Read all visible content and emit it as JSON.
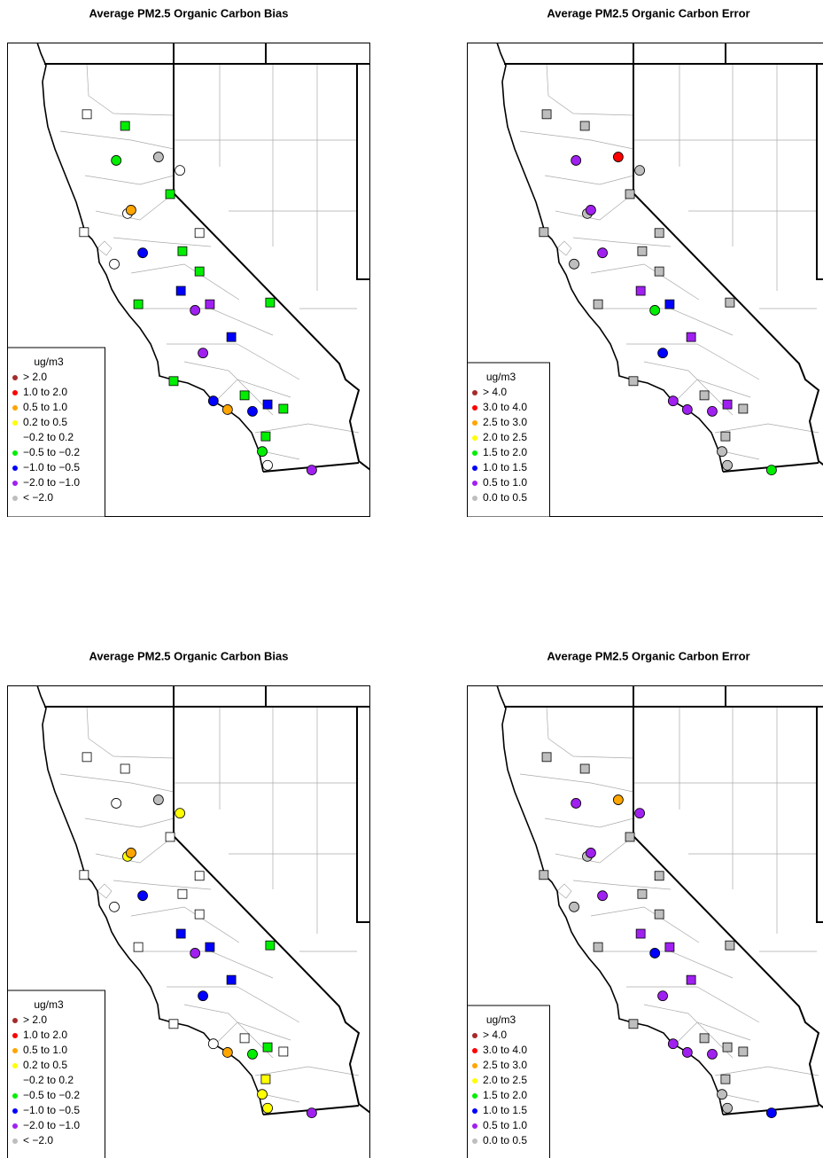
{
  "panels": [
    {
      "title": "Average PM2.5 Organic Carbon Bias",
      "legend": {
        "title": "ug/m3",
        "items": [
          {
            "label": "> 2.0",
            "color": "#a52a2a"
          },
          {
            "label": "1.0 to 2.0",
            "color": "#ff0000"
          },
          {
            "label": "0.5 to 1.0",
            "color": "#ffa500"
          },
          {
            "label": "0.2 to 0.5",
            "color": "#ffff00"
          },
          {
            "label": "−0.2 to 0.2",
            "color": "#ffffff"
          },
          {
            "label": "−0.5 to −0.2",
            "color": "#00ee00"
          },
          {
            "label": "−1.0 to −0.5",
            "color": "#0000ff"
          },
          {
            "label": "−2.0 to −1.0",
            "color": "#a020f0"
          },
          {
            "label": "< −2.0",
            "color": "#bebebe"
          }
        ]
      },
      "site_classes": [
        4,
        5,
        5,
        8,
        4,
        5,
        4,
        2,
        4,
        4,
        4,
        6,
        5,
        5,
        6,
        5,
        7,
        7,
        5,
        6,
        7,
        5,
        5,
        6,
        2,
        6,
        6,
        5,
        5,
        5,
        4,
        7
      ]
    },
    {
      "title": "Average PM2.5 Organic Carbon Error",
      "legend": {
        "title": "ug/m3",
        "items": [
          {
            "label": "> 4.0",
            "color": "#a52a2a"
          },
          {
            "label": "3.0 to 4.0",
            "color": "#ff0000"
          },
          {
            "label": "2.5 to 3.0",
            "color": "#ffa500"
          },
          {
            "label": "2.0 to 2.5",
            "color": "#ffff00"
          },
          {
            "label": "1.5 to 2.0",
            "color": "#00ee00"
          },
          {
            "label": "1.0 to 1.5",
            "color": "#0000ff"
          },
          {
            "label": "0.5 to 1.0",
            "color": "#a020f0"
          },
          {
            "label": "0.0 to 0.5",
            "color": "#bebebe"
          }
        ]
      },
      "site_classes": [
        7,
        7,
        6,
        1,
        7,
        7,
        7,
        6,
        7,
        7,
        7,
        6,
        7,
        7,
        6,
        7,
        5,
        4,
        7,
        6,
        5,
        7,
        7,
        6,
        6,
        6,
        6,
        7,
        7,
        7,
        7,
        4
      ]
    },
    {
      "title": "Average PM2.5 Organic Carbon Bias",
      "legend": {
        "title": "ug/m3",
        "items": [
          {
            "label": "> 2.0",
            "color": "#a52a2a"
          },
          {
            "label": "1.0 to 2.0",
            "color": "#ff0000"
          },
          {
            "label": "0.5 to 1.0",
            "color": "#ffa500"
          },
          {
            "label": "0.2 to 0.5",
            "color": "#ffff00"
          },
          {
            "label": "−0.2 to 0.2",
            "color": "#ffffff"
          },
          {
            "label": "−0.5 to −0.2",
            "color": "#00ee00"
          },
          {
            "label": "−1.0 to −0.5",
            "color": "#0000ff"
          },
          {
            "label": "−2.0 to −1.0",
            "color": "#a020f0"
          },
          {
            "label": "< −2.0",
            "color": "#bebebe"
          }
        ]
      },
      "site_classes": [
        4,
        4,
        4,
        8,
        3,
        4,
        3,
        2,
        4,
        4,
        4,
        6,
        4,
        4,
        6,
        4,
        6,
        7,
        5,
        6,
        6,
        4,
        4,
        4,
        2,
        5,
        5,
        4,
        3,
        3,
        3,
        7
      ]
    },
    {
      "title": "Average PM2.5 Organic Carbon Error",
      "legend": {
        "title": "ug/m3",
        "items": [
          {
            "label": "> 4.0",
            "color": "#a52a2a"
          },
          {
            "label": "3.0 to 4.0",
            "color": "#ff0000"
          },
          {
            "label": "2.5 to 3.0",
            "color": "#ffa500"
          },
          {
            "label": "2.0 to 2.5",
            "color": "#ffff00"
          },
          {
            "label": "1.5 to 2.0",
            "color": "#00ee00"
          },
          {
            "label": "1.0 to 1.5",
            "color": "#0000ff"
          },
          {
            "label": "0.5 to 1.0",
            "color": "#a020f0"
          },
          {
            "label": "0.0 to 0.5",
            "color": "#bebebe"
          }
        ]
      },
      "site_classes": [
        7,
        7,
        6,
        2,
        6,
        7,
        7,
        6,
        7,
        7,
        7,
        6,
        7,
        7,
        6,
        7,
        6,
        5,
        7,
        6,
        6,
        7,
        7,
        6,
        6,
        7,
        6,
        7,
        7,
        7,
        7,
        5
      ]
    }
  ],
  "sites": [
    {
      "lon": -122.77,
      "lat": 40.84,
      "shape": "square"
    },
    {
      "lon": -121.56,
      "lat": 40.57,
      "shape": "square"
    },
    {
      "lon": -121.84,
      "lat": 39.77,
      "shape": "circle"
    },
    {
      "lon": -120.5,
      "lat": 39.85,
      "shape": "circle"
    },
    {
      "lon": -119.82,
      "lat": 39.54,
      "shape": "circle"
    },
    {
      "lon": -120.13,
      "lat": 38.99,
      "shape": "square"
    },
    {
      "lon": -121.48,
      "lat": 38.54,
      "shape": "circle"
    },
    {
      "lon": -121.37,
      "lat": 38.62,
      "shape": "circle"
    },
    {
      "lon": -122.86,
      "lat": 38.11,
      "shape": "square"
    },
    {
      "lon": -119.2,
      "lat": 38.09,
      "shape": "square"
    },
    {
      "lon": -121.9,
      "lat": 37.37,
      "shape": "circle"
    },
    {
      "lon": -121.0,
      "lat": 37.63,
      "shape": "circle"
    },
    {
      "lon": -119.74,
      "lat": 37.67,
      "shape": "square"
    },
    {
      "lon": -119.2,
      "lat": 37.2,
      "shape": "square"
    },
    {
      "lon": -119.79,
      "lat": 36.75,
      "shape": "square"
    },
    {
      "lon": -121.14,
      "lat": 36.44,
      "shape": "square"
    },
    {
      "lon": -118.87,
      "lat": 36.44,
      "shape": "square"
    },
    {
      "lon": -119.34,
      "lat": 36.3,
      "shape": "circle"
    },
    {
      "lon": -116.96,
      "lat": 36.48,
      "shape": "square"
    },
    {
      "lon": -118.19,
      "lat": 35.68,
      "shape": "square"
    },
    {
      "lon": -119.09,
      "lat": 35.31,
      "shape": "circle"
    },
    {
      "lon": -120.02,
      "lat": 34.66,
      "shape": "square"
    },
    {
      "lon": -117.77,
      "lat": 34.33,
      "shape": "square"
    },
    {
      "lon": -118.76,
      "lat": 34.2,
      "shape": "circle"
    },
    {
      "lon": -118.31,
      "lat": 34.0,
      "shape": "circle"
    },
    {
      "lon": -117.04,
      "lat": 34.12,
      "shape": "square"
    },
    {
      "lon": -117.52,
      "lat": 33.96,
      "shape": "circle"
    },
    {
      "lon": -116.54,
      "lat": 34.02,
      "shape": "square"
    },
    {
      "lon": -117.1,
      "lat": 33.38,
      "shape": "square"
    },
    {
      "lon": -117.21,
      "lat": 33.03,
      "shape": "circle"
    },
    {
      "lon": -117.04,
      "lat": 32.71,
      "shape": "circle"
    },
    {
      "lon": -115.64,
      "lat": 32.6,
      "shape": "circle"
    }
  ]
}
